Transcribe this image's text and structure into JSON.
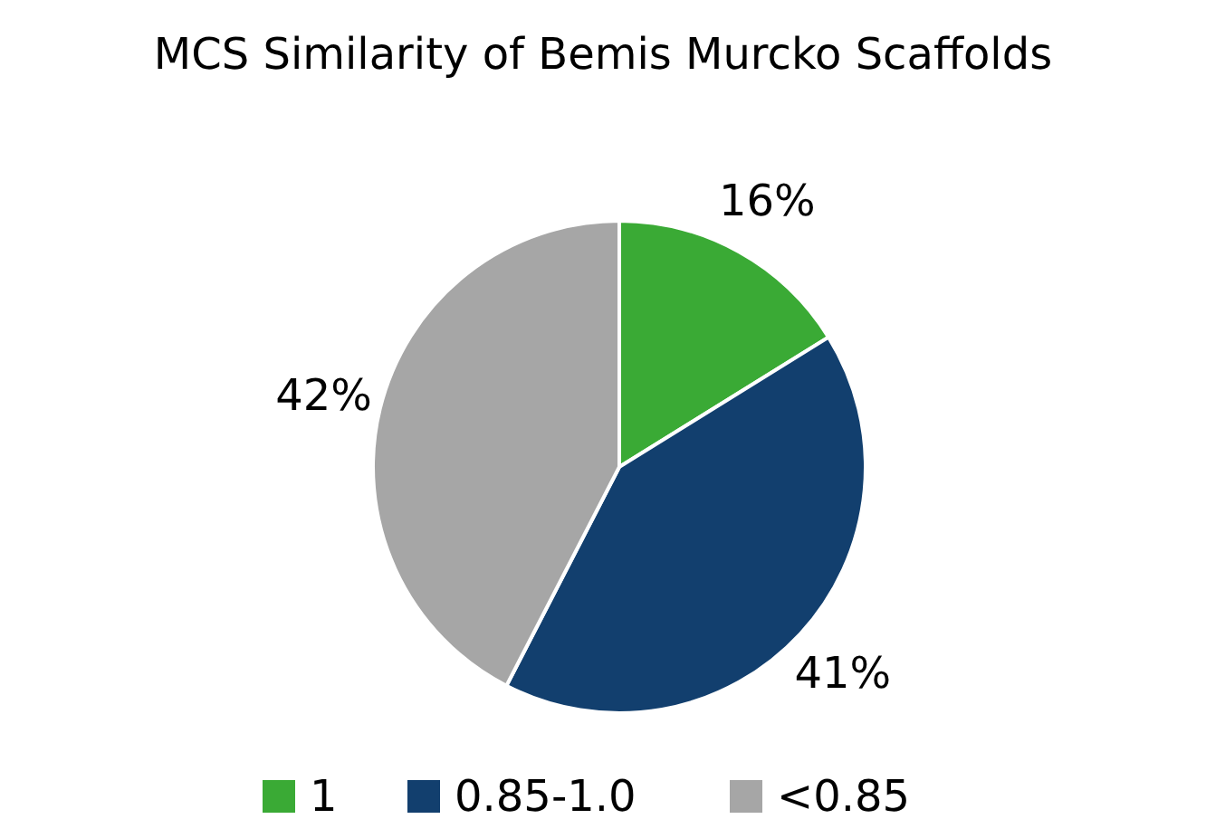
{
  "chart_data": {
    "type": "pie",
    "title": "MCS Similarity of Bemis Murcko Scaffolds",
    "categories": [
      "1",
      "0.85-1.0",
      "<0.85"
    ],
    "values": [
      16,
      41,
      42
    ],
    "colors": [
      "#3aaa35",
      "#123f6e",
      "#a6a6a6"
    ],
    "value_labels": [
      "16%",
      "41%",
      "42%"
    ],
    "legend": "bottom"
  }
}
